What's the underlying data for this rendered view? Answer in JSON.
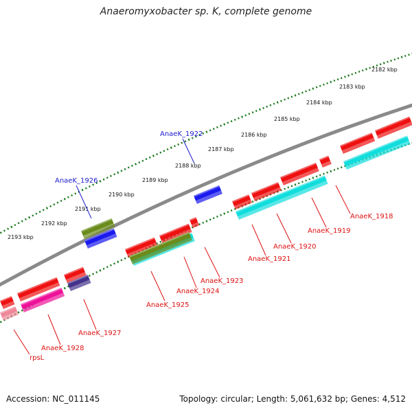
{
  "header": {
    "title": "Anaeromyxobacter sp. K, complete genome"
  },
  "footer": {
    "accession": "Accession: NC_011145",
    "topology": "Topology: circular; Length: 5,061,632 bp; Genes: 4,512"
  },
  "colors": {
    "backbone": "#888888",
    "tick": "#1b7a1b",
    "label_forward": "#1a1acc",
    "label_reverse": "#dd1111",
    "red_gene": "#ee1111",
    "cyan_gene": "#11dddd",
    "olive_gene": "#6b8b1b",
    "blue_gene": "#1a1aee",
    "magenta_gene": "#ee1199",
    "navy_gene": "#44338b",
    "pink_gene": "#ee8899"
  },
  "scale_labels": [
    "2182 kbp",
    "2183 kbp",
    "2184 kbp",
    "2185 kbp",
    "2186 kbp",
    "2187 kbp",
    "2188 kbp",
    "2189 kbp",
    "2190 kbp",
    "2191 kbp",
    "2192 kbp",
    "2193 kbp"
  ],
  "gene_labels": {
    "forward": [
      "AnaeK_1922",
      "AnaeK_1926"
    ],
    "reverse": [
      "AnaeK_1918",
      "AnaeK_1919",
      "AnaeK_1920",
      "AnaeK_1921",
      "AnaeK_1923",
      "AnaeK_1924",
      "AnaeK_1925",
      "AnaeK_1927",
      "AnaeK_1928",
      "rpsL"
    ]
  }
}
